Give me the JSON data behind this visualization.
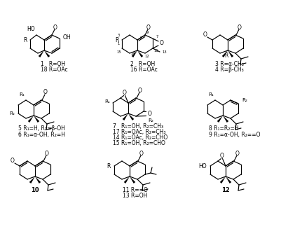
{
  "bg": "#ffffff",
  "figsize": [
    4.01,
    3.27
  ],
  "dpi": 100,
  "structures": {
    "s1": {
      "ox": 63,
      "oy": 268,
      "label1": "1   R=OH",
      "label2": "18 R=OAc"
    },
    "s2": {
      "ox": 196,
      "oy": 268,
      "label1": "2   R=OH",
      "label2": "16 R=OAc"
    },
    "s34": {
      "ox": 325,
      "oy": 268,
      "label1": "3 R=α-CH₃",
      "label2": "4 R=β-CH₃"
    },
    "s56": {
      "ox": 48,
      "oy": 175,
      "label1": "5 R₁=H, R₂=β-OH",
      "label2": "6 R₁=α-OH, R₂=H"
    },
    "s7": {
      "ox": 183,
      "oy": 178,
      "label1": "7   R₁=OH, R₂=CH₃",
      "label2": "17 R₁=OAc, R₂=CH₃",
      "label3": "14 R₁=OAc, R₂=CHO",
      "label4": "15 R₁=OH, R₂=CHO"
    },
    "s89": {
      "ox": 318,
      "oy": 175,
      "label1": "8 R₁=R₂=H",
      "label2": "9 R₁=α-OH, R₂==O"
    },
    "s10": {
      "ox": 50,
      "oy": 88,
      "label": "10"
    },
    "s11": {
      "ox": 185,
      "oy": 88,
      "label1": "11 R==O",
      "label2": "13 R=OH"
    },
    "s12": {
      "ox": 322,
      "oy": 88,
      "label": "12"
    }
  }
}
